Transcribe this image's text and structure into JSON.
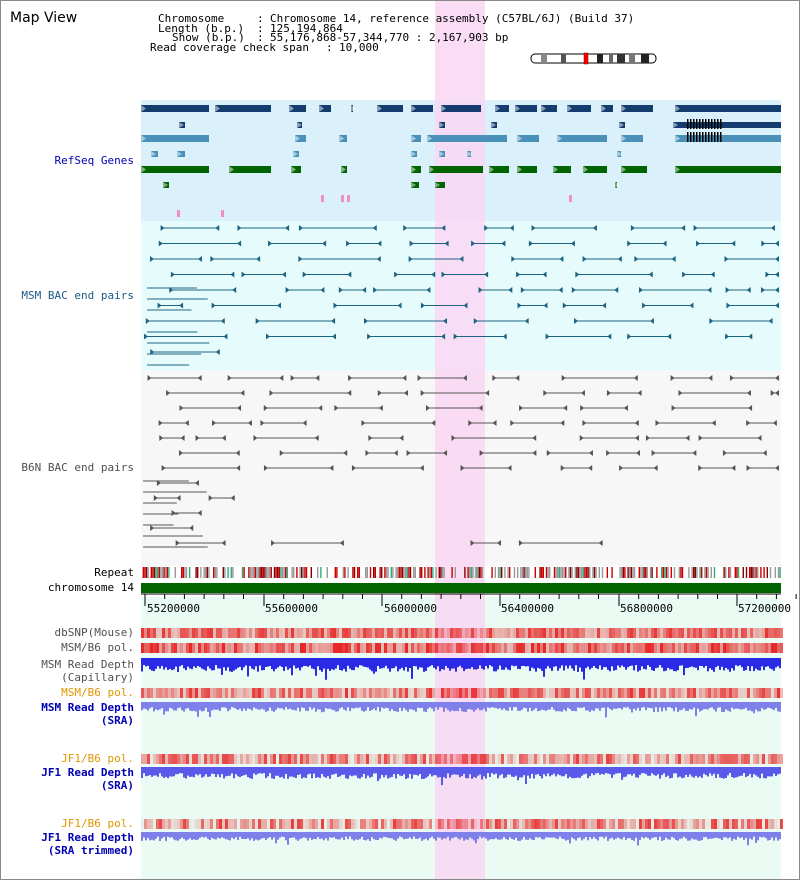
{
  "app_title": "Map View",
  "info": {
    "chromosome_key": "Chromosome",
    "chromosome_val": "Chromosome 14, reference assembly (C57BL/6J) (Build 37)",
    "length_key": "Length (b.p.)",
    "length_val": "125,194,864",
    "show_key": "Show (b.p.)",
    "show_val": "55,176,868-57,344,770 : 2,167,903 bp",
    "coverage_key": "Read coverage check span",
    "coverage_val": "10,000"
  },
  "tracks": {
    "refseq": "RefSeq Genes",
    "msm_bac": "MSM BAC end pairs",
    "b6n_bac": "B6N BAC end pairs",
    "repeat": "Repeat",
    "chromosome": "chromosome 14",
    "dbsnp": "dbSNP(Mouse)",
    "msm_b6_pol_1": "MSM/B6 pol.",
    "msm_depth_cap_1": "MSM Read Depth",
    "msm_depth_cap_2": "(Capillary)",
    "msm_b6_pol_2": "MSM/B6 pol.",
    "msm_depth_sra_1": "MSM Read Depth",
    "msm_depth_sra_2": "(SRA)",
    "jf1_b6_pol_1": "JF1/B6 pol.",
    "jf1_depth_sra_1": "JF1 Read Depth",
    "jf1_depth_sra_2": "(SRA)",
    "jf1_b6_pol_2": "JF1/B6 pol.",
    "jf1_depth_trim_1": "JF1 Read Depth",
    "jf1_depth_trim_2": "(SRA trimmed)"
  },
  "axis": {
    "ticks": [
      "55200000",
      "55600000",
      "56000000",
      "56400000",
      "56800000",
      "57200000"
    ]
  },
  "colors": {
    "refseq_bg": "#daf0fb",
    "msm_bg": "#e6fbfb",
    "b6n_bg": "#f7f7f7",
    "highlight": "#f9d7f3",
    "refseq_label": "#0000b4",
    "msm_label": "#1e5a82",
    "b6n_label": "#505050",
    "blue_label": "#0000b4",
    "orange_label": "#e19600",
    "chromosome_bar": "#006400"
  }
}
